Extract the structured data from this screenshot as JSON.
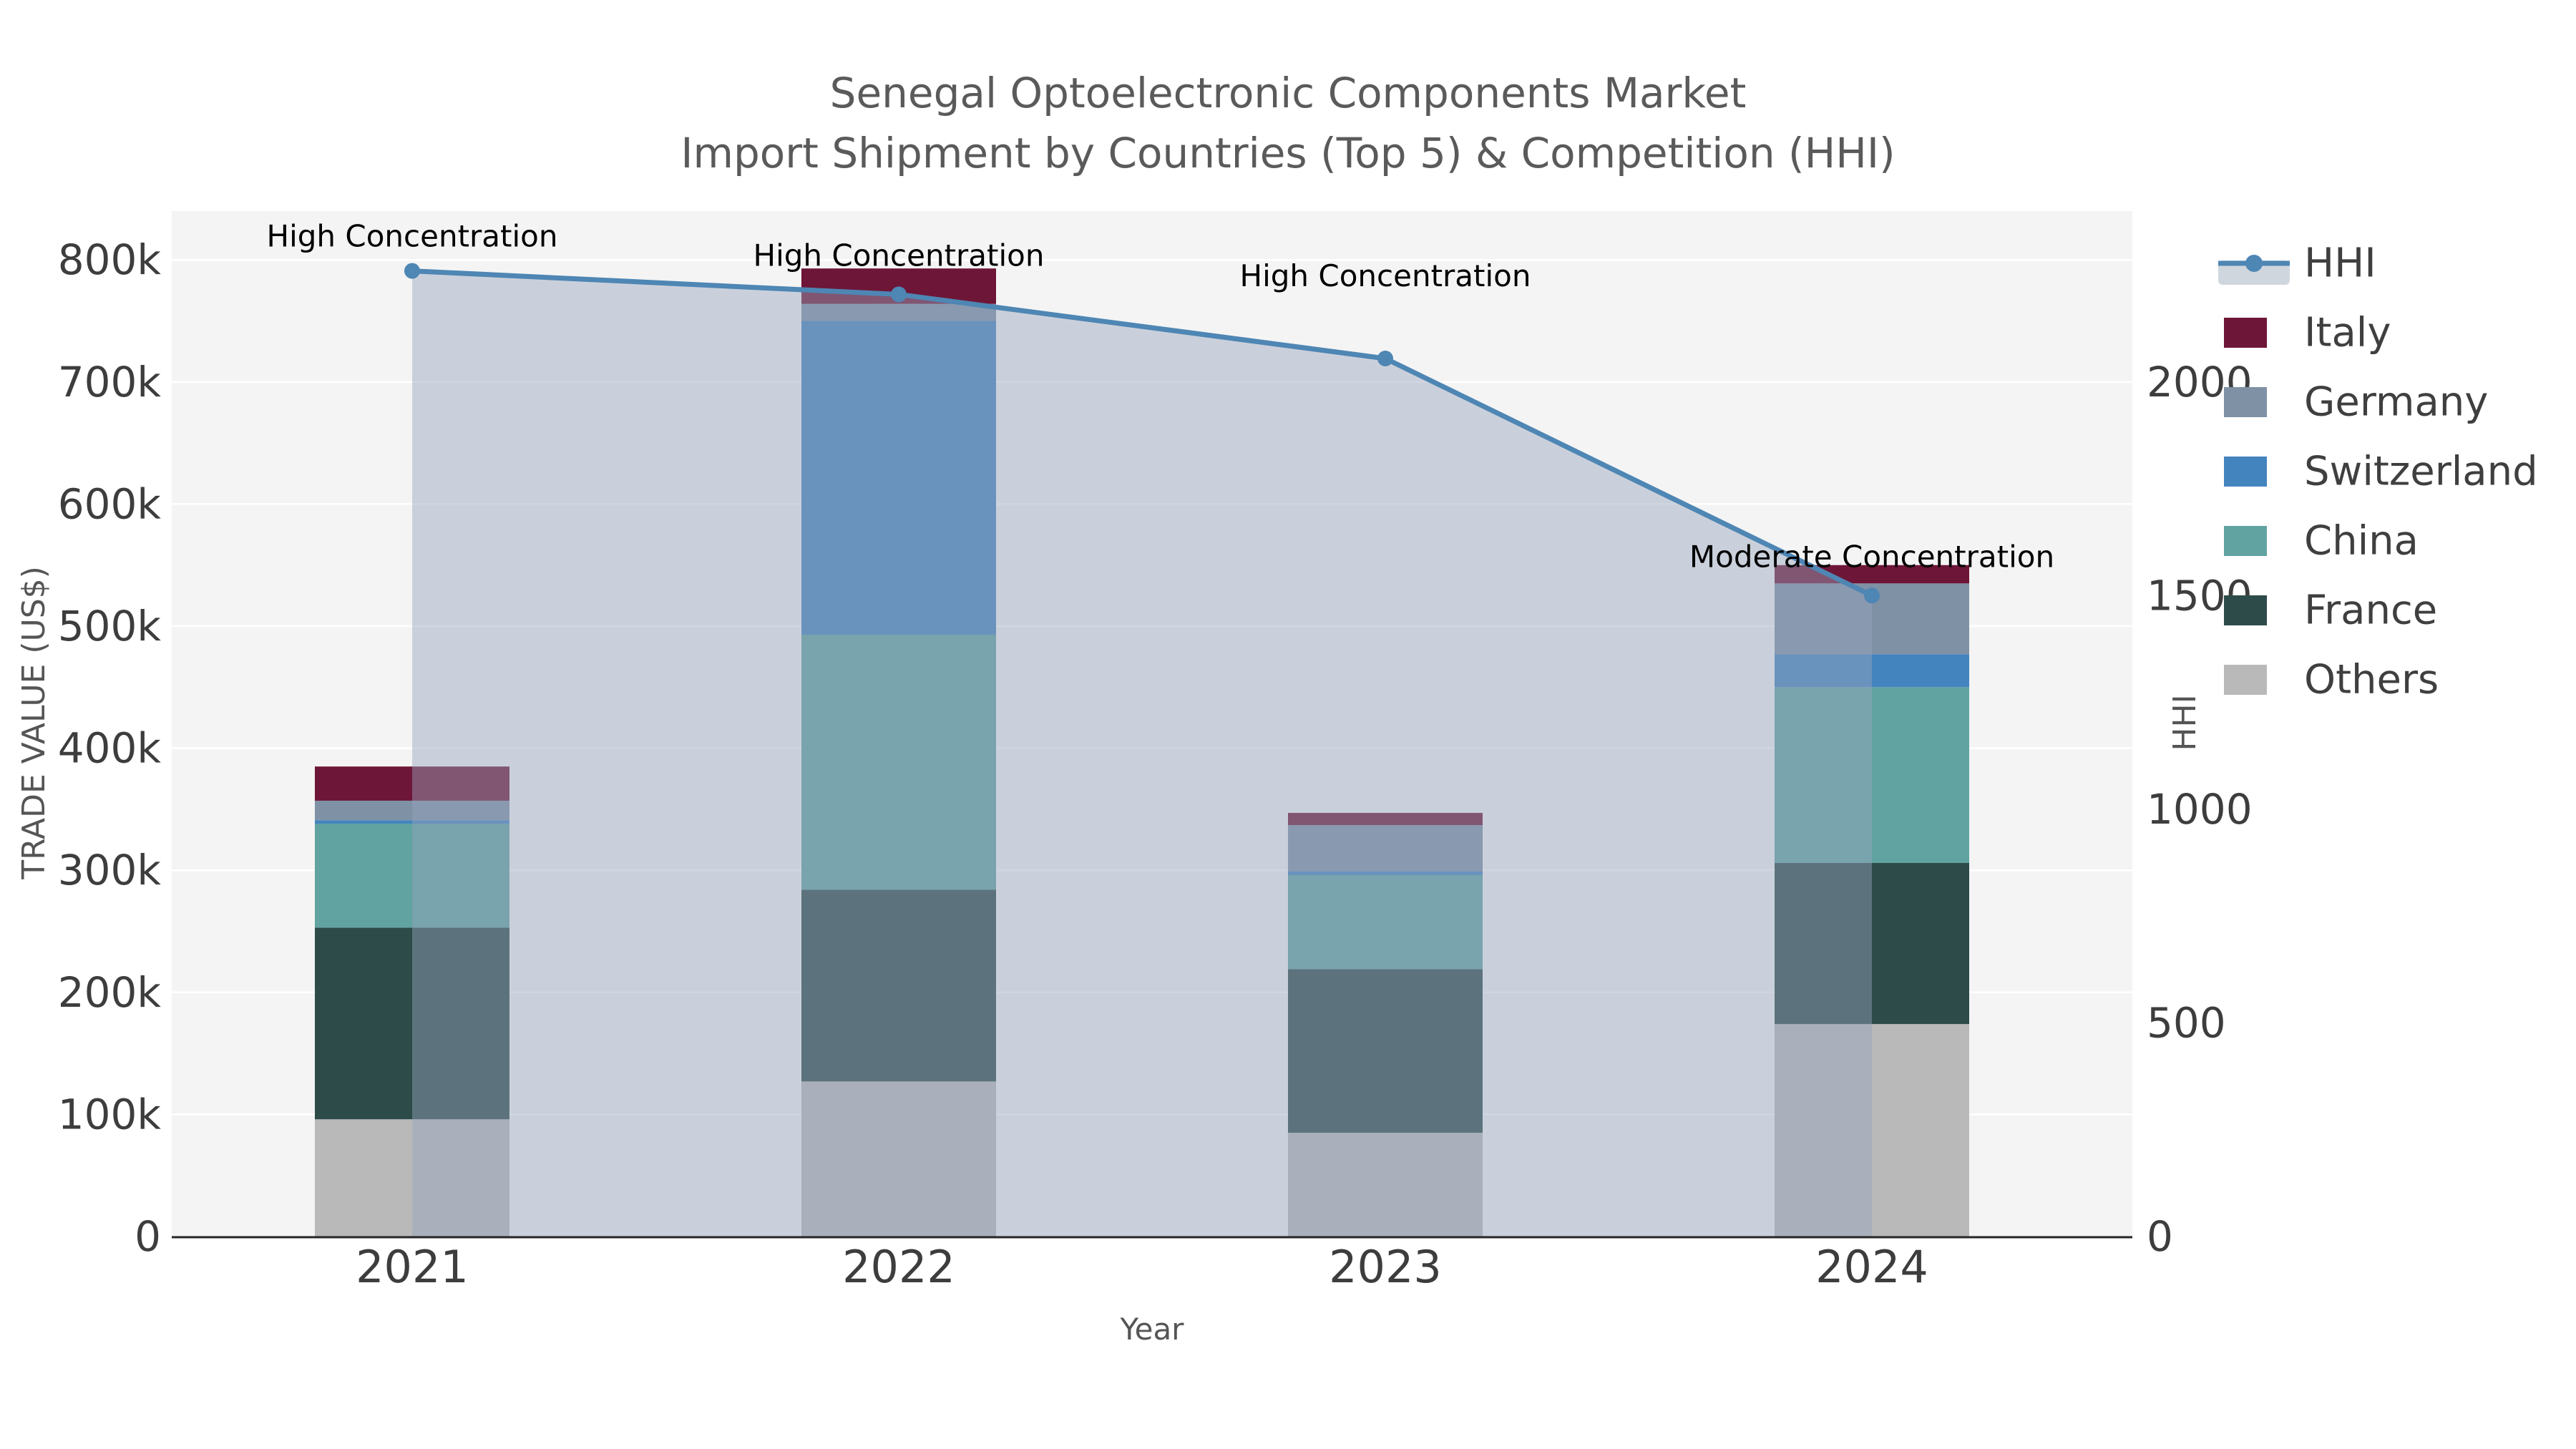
{
  "title": {
    "line1": "Senegal Optoelectronic Components Market",
    "line2": "Import Shipment by Countries (Top 5) & Competition (HHI)"
  },
  "axes": {
    "x": {
      "label": "Year",
      "categories": [
        "2021",
        "2022",
        "2023",
        "2024"
      ]
    },
    "y_left": {
      "label": "TRADE VALUE (US$)",
      "ticks": [
        {
          "label": "0",
          "value": 0
        },
        {
          "label": "100k",
          "value": 100000
        },
        {
          "label": "200k",
          "value": 200000
        },
        {
          "label": "300k",
          "value": 300000
        },
        {
          "label": "400k",
          "value": 400000
        },
        {
          "label": "500k",
          "value": 500000
        },
        {
          "label": "600k",
          "value": 600000
        },
        {
          "label": "700k",
          "value": 700000
        },
        {
          "label": "800k",
          "value": 800000
        }
      ]
    },
    "y_right": {
      "label": "HHI",
      "ticks": [
        {
          "label": "0",
          "value": 0
        },
        {
          "label": "500",
          "value": 500
        },
        {
          "label": "1000",
          "value": 1000
        },
        {
          "label": "1500",
          "value": 1500
        },
        {
          "label": "2000",
          "value": 2000
        }
      ]
    }
  },
  "legend": [
    {
      "label": "HHI",
      "type": "line",
      "color": "#4e86b4",
      "band": "#cfd6de"
    },
    {
      "label": "Italy",
      "type": "swatch",
      "color": "#6e1637"
    },
    {
      "label": "Germany",
      "type": "swatch",
      "color": "#7f91a4"
    },
    {
      "label": "Switzerland",
      "type": "swatch",
      "color": "#4484be"
    },
    {
      "label": "China",
      "type": "swatch",
      "color": "#61a3a1"
    },
    {
      "label": "France",
      "type": "swatch",
      "color": "#2d4b49"
    },
    {
      "label": "Others",
      "type": "swatch",
      "color": "#b9b9ba"
    }
  ],
  "chart_data": {
    "type": "bar+line",
    "title": "Senegal Optoelectronic Components Market — Import Shipment by Countries (Top 5) & Competition (HHI)",
    "categories": [
      "2021",
      "2022",
      "2023",
      "2024"
    ],
    "xlabel": "Year",
    "ylabel": "TRADE VALUE (US$)",
    "ylabel_right": "HHI",
    "ylim": [
      0,
      840000
    ],
    "ylim_right": [
      0,
      2400
    ],
    "grid": true,
    "legend_position": "right",
    "bar_series": [
      {
        "name": "Others",
        "color": "#b9b9ba",
        "values": [
          96000,
          127000,
          85000,
          174000
        ]
      },
      {
        "name": "France",
        "color": "#2d4b49",
        "values": [
          157000,
          157000,
          134000,
          132000
        ]
      },
      {
        "name": "China",
        "color": "#61a3a1",
        "values": [
          85000,
          209000,
          77000,
          144000
        ]
      },
      {
        "name": "Switzerland",
        "color": "#4484be",
        "values": [
          3000,
          257000,
          3000,
          27000
        ]
      },
      {
        "name": "Germany",
        "color": "#7f91a4",
        "values": [
          16000,
          14000,
          38000,
          58000
        ]
      },
      {
        "name": "Italy",
        "color": "#6e1637",
        "values": [
          28000,
          29000,
          10000,
          15000
        ]
      }
    ],
    "line_series": {
      "name": "HHI",
      "color": "#4e86b4",
      "area_fill": "rgba(150,165,188,0.45)",
      "values": [
        2260,
        2205,
        2055,
        1500
      ]
    },
    "annotations": [
      {
        "text": "High Concentration",
        "category": "2021"
      },
      {
        "text": "High Concentration",
        "category": "2022"
      },
      {
        "text": "High Concentration",
        "category": "2023"
      },
      {
        "text": "Moderate Concentration",
        "category": "2024"
      }
    ]
  },
  "colors": {
    "page_bg": "#ffffff",
    "plot_bg": "#f4f4f4",
    "grid": "#ffffff",
    "spine": "#262626",
    "tick_text": "#3d3d3d",
    "title_text": "#5a5a5a",
    "axis_label_text": "#555555",
    "annotation_text": "#000000"
  }
}
